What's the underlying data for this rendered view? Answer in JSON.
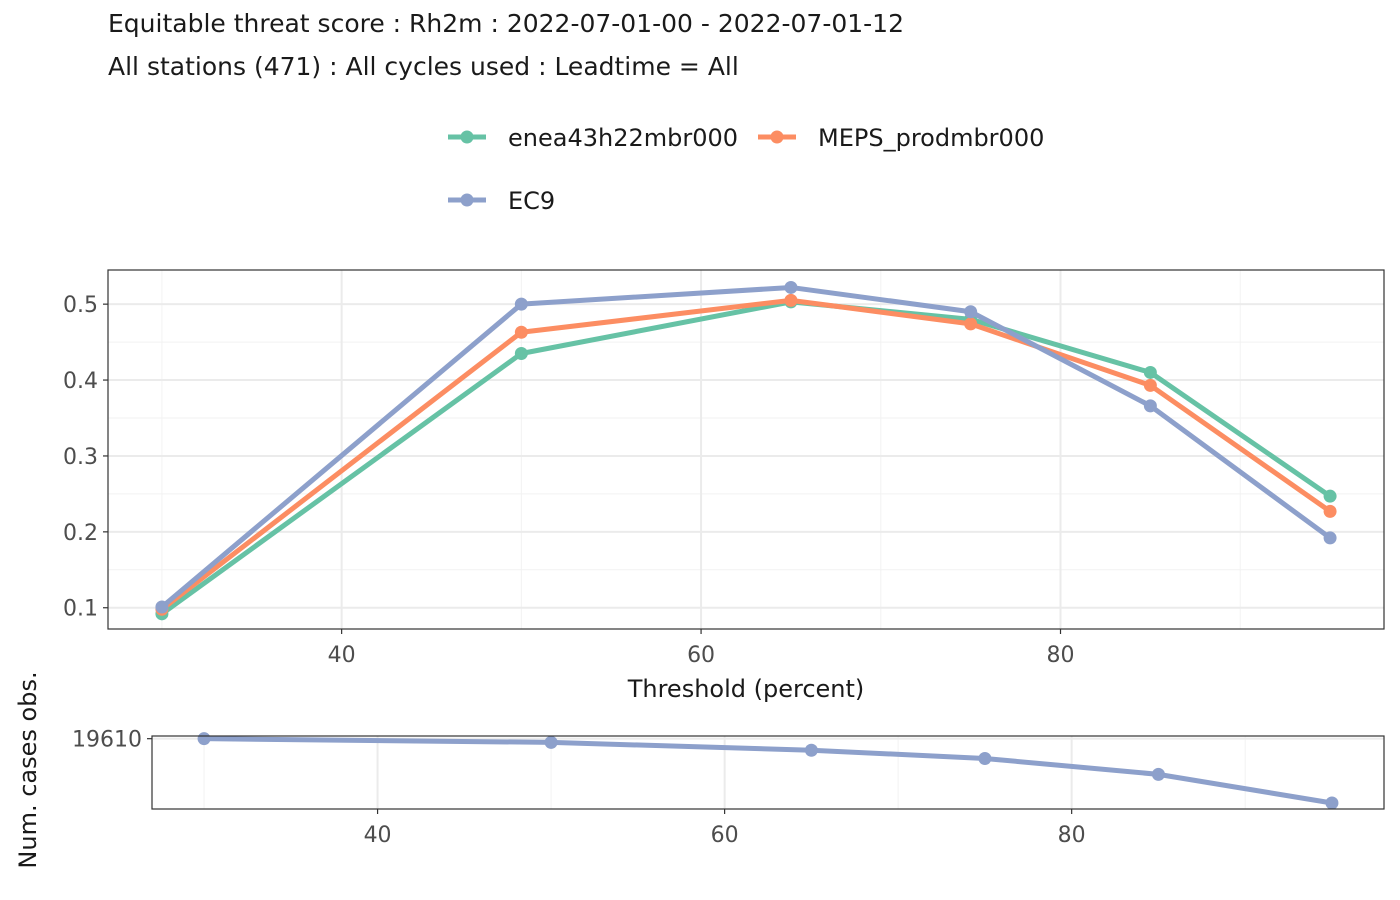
{
  "title": "Equitable threat score : Rh2m : 2022-07-01-00 - 2022-07-01-12",
  "subtitle": "All stations (471) : All cycles used : Leadtime = All",
  "chart_data": [
    {
      "type": "line",
      "xlabel": "Threshold (percent)",
      "ylabel": "",
      "xlim": [
        27,
        98
      ],
      "ylim": [
        0.072,
        0.545
      ],
      "xticks": [
        40,
        60,
        80
      ],
      "xminor": [
        30,
        50,
        70,
        90
      ],
      "yticks": [
        0.1,
        0.2,
        0.3,
        0.4,
        0.5
      ],
      "yminor": [
        0.15,
        0.25,
        0.35,
        0.45
      ],
      "tick_labels_y": [
        "0.1",
        "0.2",
        "0.3",
        "0.4",
        "0.5"
      ],
      "tick_labels_x": [
        "40",
        "60",
        "80"
      ],
      "grid": true,
      "legend_position": "top",
      "x": [
        30,
        50,
        65,
        75,
        85,
        95
      ],
      "series": [
        {
          "name": "enea43h22mbr000",
          "color": "#66c2a5",
          "values": [
            0.092,
            0.435,
            0.503,
            0.48,
            0.41,
            0.247
          ]
        },
        {
          "name": "MEPS_prodmbr000",
          "color": "#fc8d62",
          "values": [
            0.098,
            0.463,
            0.505,
            0.474,
            0.393,
            0.227
          ]
        },
        {
          "name": "EC9",
          "color": "#8da0cb",
          "values": [
            0.101,
            0.5,
            0.522,
            0.49,
            0.366,
            0.192
          ]
        }
      ]
    },
    {
      "type": "line",
      "xlabel": "",
      "ylabel": "Num. cases obs.",
      "xlim": [
        27,
        98
      ],
      "ylim": [
        16200,
        19740
      ],
      "xticks": [
        40,
        60,
        80
      ],
      "xminor": [
        30,
        50,
        70,
        90
      ],
      "yticks": [
        19610
      ],
      "tick_labels_y": [
        "19610"
      ],
      "tick_labels_x": [
        "40",
        "60",
        "80"
      ],
      "grid": true,
      "x": [
        30,
        50,
        65,
        75,
        85,
        95
      ],
      "series": [
        {
          "name": "EC9",
          "color": "#8da0cb",
          "values": [
            19610,
            19430,
            19050,
            18650,
            17880,
            16490
          ]
        }
      ]
    }
  ]
}
